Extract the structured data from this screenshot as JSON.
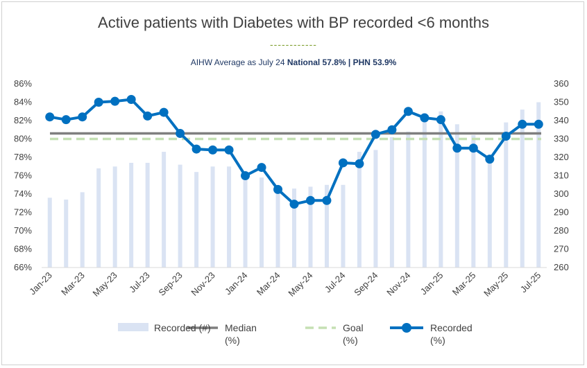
{
  "chart_data": {
    "type": "bar+line",
    "title": "Active patients with Diabetes with BP recorded <6 months",
    "subtitle_prefix": "AIHW Average as July 24 ",
    "subtitle_national": "National 57.8%",
    "subtitle_sep": " | ",
    "subtitle_phn": "PHN 53.9%",
    "title_rule": "------------",
    "categories": [
      "Jan-23",
      "Feb-23",
      "Mar-23",
      "Apr-23",
      "May-23",
      "Jun-23",
      "Jul-23",
      "Aug-23",
      "Sep-23",
      "Oct-23",
      "Nov-23",
      "Dec-23",
      "Jan-24",
      "Feb-24",
      "Mar-24",
      "Apr-24",
      "May-24",
      "Jun-24",
      "Jul-24",
      "Aug-24",
      "Sep-24",
      "Oct-24",
      "Nov-24",
      "Dec-24",
      "Jan-25",
      "Feb-25",
      "Mar-25",
      "Apr-25",
      "May-25",
      "Jun-25",
      "Jul-25"
    ],
    "x_tick_labels": [
      "Jan-23",
      "",
      "Mar-23",
      "",
      "May-23",
      "",
      "Jul-23",
      "",
      "Sep-23",
      "",
      "Nov-23",
      "",
      "Jan-24",
      "",
      "Mar-24",
      "",
      "May-24",
      "",
      "Jul-24",
      "",
      "Sep-24",
      "",
      "Nov-24",
      "",
      "Jan-25",
      "",
      "Mar-25",
      "",
      "May-25",
      "",
      "Jul-25"
    ],
    "y_left": {
      "min": 66,
      "max": 86,
      "step": 2,
      "ticks": [
        "66%",
        "68%",
        "70%",
        "72%",
        "74%",
        "76%",
        "78%",
        "80%",
        "82%",
        "84%",
        "86%"
      ]
    },
    "y_right": {
      "min": 260,
      "max": 360,
      "step": 10,
      "ticks": [
        "260",
        "270",
        "280",
        "290",
        "300",
        "310",
        "320",
        "330",
        "340",
        "350",
        "360"
      ]
    },
    "series": [
      {
        "name": "Recorded (#)",
        "type": "bar",
        "axis": "right",
        "color": "#dae3f3",
        "values": [
          298,
          297,
          301,
          314,
          315,
          317,
          317,
          323,
          316,
          312,
          315,
          315,
          309,
          309,
          303,
          303,
          304,
          305,
          305,
          323,
          324,
          331,
          334,
          344,
          345,
          338,
          332,
          319,
          339,
          346,
          350
        ]
      },
      {
        "name": "Median (%)",
        "type": "line",
        "axis": "left",
        "color": "#7f7f7f",
        "values": [
          80.6,
          80.6,
          80.6,
          80.6,
          80.6,
          80.6,
          80.6,
          80.6,
          80.6,
          80.6,
          80.6,
          80.6,
          80.6,
          80.6,
          80.6,
          80.6,
          80.6,
          80.6,
          80.6,
          80.6,
          80.6,
          80.6,
          80.6,
          80.6,
          80.6,
          80.6,
          80.6,
          80.6,
          80.6,
          80.6,
          80.6
        ]
      },
      {
        "name": "Goal (%)",
        "type": "line",
        "axis": "left",
        "color": "#c5e0b4",
        "dashed": true,
        "values": [
          80,
          80,
          80,
          80,
          80,
          80,
          80,
          80,
          80,
          80,
          80,
          80,
          80,
          80,
          80,
          80,
          80,
          80,
          80,
          80,
          80,
          80,
          80,
          80,
          80,
          80,
          80,
          80,
          80,
          80,
          80
        ]
      },
      {
        "name": "Recorded (%)",
        "type": "line",
        "axis": "left",
        "color": "#0070c0",
        "markers": true,
        "values": [
          82.4,
          82.1,
          82.4,
          84.0,
          84.1,
          84.3,
          82.5,
          82.9,
          80.6,
          78.9,
          78.8,
          78.8,
          76.0,
          76.9,
          74.5,
          72.9,
          73.3,
          73.3,
          77.4,
          77.3,
          80.5,
          81.0,
          83.0,
          82.3,
          82.1,
          79.0,
          79.0,
          77.8,
          80.3,
          81.6,
          81.6
        ]
      }
    ],
    "legend": {
      "position": "bottom",
      "items": [
        {
          "line1": "Recorded (#)",
          "line2": ""
        },
        {
          "line1": "Median",
          "line2": "(%)"
        },
        {
          "line1": "Goal",
          "line2": "(%)"
        },
        {
          "line1": "Recorded",
          "line2": "(%)"
        }
      ]
    },
    "grid": false
  }
}
